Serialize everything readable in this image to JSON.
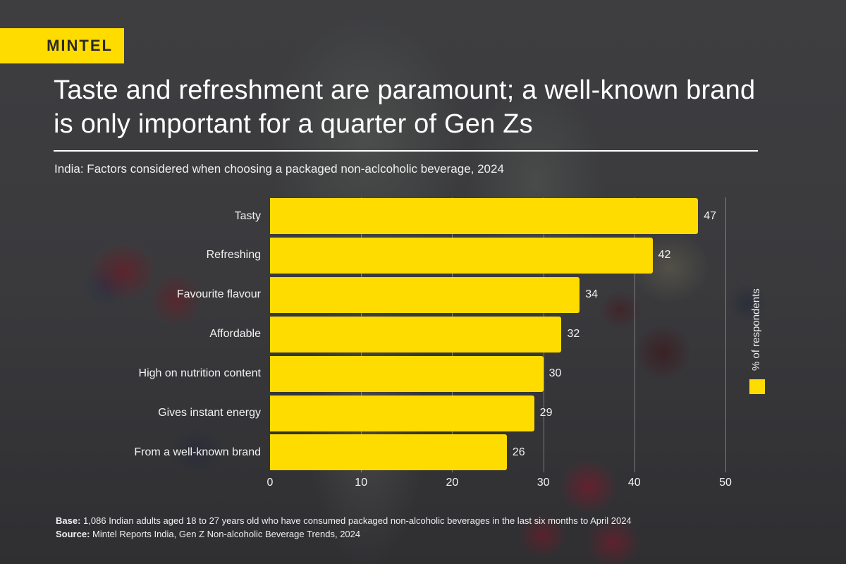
{
  "brand": {
    "logo_text": "MINTEL",
    "accent_color": "#ffdc00"
  },
  "header": {
    "title": "Taste and refreshment are paramount; a well-known brand is only important for a quarter of Gen Zs",
    "subtitle": "India: Factors considered when choosing a packaged non-aclcoholic beverage, 2024"
  },
  "legend": {
    "label": "% of respondents",
    "color": "#ffdc00"
  },
  "footer": {
    "base_label": "Base:",
    "base_text": "1,086 Indian adults aged 18 to 27 years old who have consumed packaged non-alcoholic beverages in the last six months to April 2024",
    "source_label": "Source:",
    "source_text": "Mintel Reports India, Gen Z Non-alcoholic Beverage Trends, 2024"
  },
  "chart_data": {
    "type": "bar",
    "orientation": "horizontal",
    "title": "Taste and refreshment are paramount; a well-known brand is only important for a quarter of Gen Zs",
    "subtitle": "India: Factors considered when choosing a packaged non-aclcoholic beverage, 2024",
    "categories": [
      "Tasty",
      "Refreshing",
      "Favourite flavour",
      "Affordable",
      "High on nutrition content",
      "Gives instant energy",
      "From a well-known brand"
    ],
    "series": [
      {
        "name": "% of respondents",
        "values": [
          47,
          42,
          34,
          32,
          30,
          29,
          26
        ],
        "color": "#ffdc00"
      }
    ],
    "xlabel": "",
    "ylabel": "",
    "xlim": [
      0,
      50
    ],
    "xticks": [
      "0",
      "10",
      "20",
      "30",
      "40",
      "50"
    ],
    "grid": true,
    "legend_position": "right",
    "data_labels": true
  }
}
